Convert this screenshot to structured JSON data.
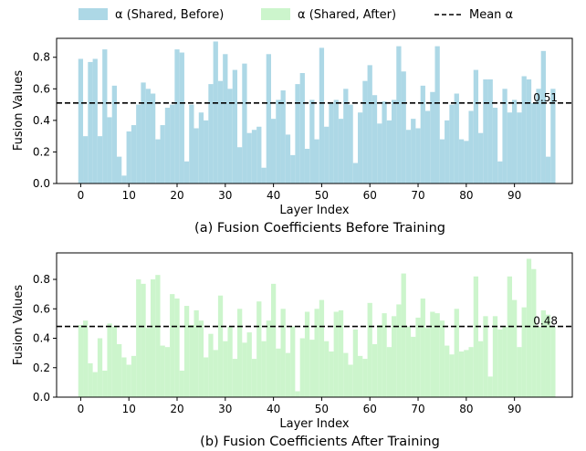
{
  "legend": {
    "before_label": "α (Shared, Before)",
    "after_label": "α (Shared, After)",
    "mean_label": "Mean α"
  },
  "colors": {
    "before": "#add8e6",
    "after": "#ccf5cc",
    "mean_line": "#000000"
  },
  "chart_data": [
    {
      "type": "bar",
      "caption": "(a) Fusion Coefficients Before Training",
      "xlabel": "Layer Index",
      "ylabel": "Fusion Values",
      "xticks": [
        0,
        10,
        20,
        30,
        40,
        50,
        60,
        70,
        80,
        90
      ],
      "yticks": [
        0.0,
        0.2,
        0.4,
        0.6,
        0.8
      ],
      "xlim": [
        -5,
        102
      ],
      "ylim": [
        0,
        0.92
      ],
      "mean": 0.51,
      "mean_label": "0.51",
      "legend_name": "α (Shared, Before)",
      "values": [
        0.79,
        0.3,
        0.77,
        0.79,
        0.3,
        0.85,
        0.42,
        0.62,
        0.17,
        0.05,
        0.33,
        0.37,
        0.5,
        0.64,
        0.6,
        0.57,
        0.28,
        0.37,
        0.48,
        0.5,
        0.85,
        0.83,
        0.14,
        0.5,
        0.35,
        0.45,
        0.4,
        0.63,
        0.9,
        0.65,
        0.82,
        0.6,
        0.72,
        0.23,
        0.76,
        0.32,
        0.34,
        0.36,
        0.1,
        0.82,
        0.41,
        0.53,
        0.59,
        0.31,
        0.18,
        0.63,
        0.7,
        0.22,
        0.53,
        0.28,
        0.86,
        0.36,
        0.51,
        0.53,
        0.41,
        0.6,
        0.5,
        0.13,
        0.45,
        0.65,
        0.75,
        0.56,
        0.38,
        0.52,
        0.4,
        0.53,
        0.87,
        0.71,
        0.34,
        0.41,
        0.35,
        0.62,
        0.46,
        0.58,
        0.87,
        0.28,
        0.4,
        0.5,
        0.57,
        0.28,
        0.27,
        0.46,
        0.72,
        0.32,
        0.66,
        0.66,
        0.48,
        0.14,
        0.6,
        0.45,
        0.53,
        0.45,
        0.68,
        0.66,
        0.51,
        0.6,
        0.84,
        0.17,
        0.6
      ]
    },
    {
      "type": "bar",
      "caption": "(b) Fusion Coefficients After Training",
      "xlabel": "Layer Index",
      "ylabel": "Fusion Values",
      "xticks": [
        0,
        10,
        20,
        30,
        40,
        50,
        60,
        70,
        80,
        90
      ],
      "yticks": [
        0.0,
        0.2,
        0.4,
        0.6,
        0.8
      ],
      "xlim": [
        -5,
        102
      ],
      "ylim": [
        0,
        0.98
      ],
      "mean": 0.48,
      "mean_label": "0.48",
      "legend_name": "α (Shared, After)",
      "values": [
        0.49,
        0.52,
        0.23,
        0.17,
        0.4,
        0.18,
        0.5,
        0.48,
        0.36,
        0.27,
        0.22,
        0.28,
        0.8,
        0.77,
        0.47,
        0.8,
        0.83,
        0.35,
        0.34,
        0.7,
        0.67,
        0.18,
        0.62,
        0.49,
        0.59,
        0.52,
        0.27,
        0.43,
        0.32,
        0.69,
        0.38,
        0.48,
        0.26,
        0.6,
        0.37,
        0.44,
        0.26,
        0.65,
        0.38,
        0.52,
        0.77,
        0.33,
        0.6,
        0.3,
        0.48,
        0.04,
        0.4,
        0.58,
        0.39,
        0.6,
        0.66,
        0.38,
        0.31,
        0.58,
        0.59,
        0.3,
        0.22,
        0.46,
        0.28,
        0.26,
        0.64,
        0.36,
        0.49,
        0.57,
        0.34,
        0.55,
        0.63,
        0.84,
        0.48,
        0.41,
        0.54,
        0.67,
        0.47,
        0.58,
        0.57,
        0.52,
        0.35,
        0.29,
        0.6,
        0.31,
        0.32,
        0.34,
        0.82,
        0.38,
        0.55,
        0.14,
        0.55,
        0.46,
        0.48,
        0.82,
        0.66,
        0.34,
        0.61,
        0.94,
        0.87,
        0.48,
        0.59,
        0.56,
        0.48
      ]
    }
  ]
}
